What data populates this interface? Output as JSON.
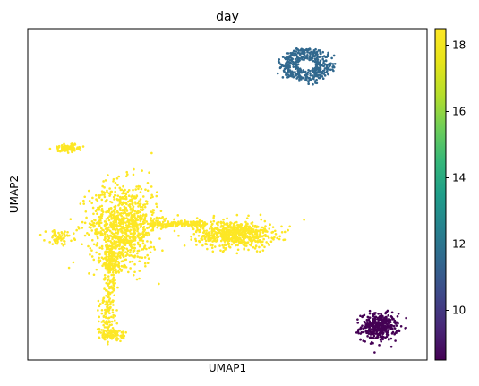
{
  "chart_data": {
    "type": "scatter",
    "title": "day",
    "xlabel": "UMAP1",
    "ylabel": "UMAP2",
    "colorbar": {
      "min": 8.5,
      "max": 18.5,
      "ticks": [
        10,
        12,
        14,
        16,
        18
      ],
      "colormap": "viridis"
    },
    "grid": false,
    "xlim": [
      0,
      10
    ],
    "ylim": [
      0,
      10
    ],
    "clusters": [
      {
        "day": 12,
        "color": "#31688e",
        "shape": "ring",
        "x": 7.0,
        "y": 8.9,
        "rx": 0.75,
        "ry": 0.55,
        "n": 420
      },
      {
        "day": 8.5,
        "color": "#440154",
        "shape": "blob",
        "x": 8.8,
        "y": 1.0,
        "rx": 0.45,
        "ry": 0.4,
        "n": 380
      },
      {
        "day": 18.5,
        "color": "#fde725",
        "shape": "blob",
        "x": 2.4,
        "y": 4.1,
        "rx": 0.85,
        "ry": 1.25,
        "n": 900
      },
      {
        "day": 18.5,
        "color": "#fde725",
        "shape": "blob",
        "x": 5.2,
        "y": 3.8,
        "rx": 0.95,
        "ry": 0.4,
        "n": 650
      },
      {
        "day": 18.5,
        "color": "#fde725",
        "shape": "bridge",
        "x": 3.75,
        "y": 4.1,
        "rx": 0.7,
        "ry": 0.12,
        "n": 180
      },
      {
        "day": 18.5,
        "color": "#fde725",
        "shape": "blob",
        "x": 1.0,
        "y": 6.4,
        "rx": 0.35,
        "ry": 0.12,
        "n": 90
      },
      {
        "day": 18.5,
        "color": "#fde725",
        "shape": "blob",
        "x": 0.8,
        "y": 3.7,
        "rx": 0.35,
        "ry": 0.2,
        "n": 60
      },
      {
        "day": 18.5,
        "color": "#fde725",
        "shape": "blob",
        "x": 2.1,
        "y": 3.0,
        "rx": 0.3,
        "ry": 0.55,
        "n": 150
      },
      {
        "day": 18.5,
        "color": "#fde725",
        "shape": "stalk",
        "x": 2.0,
        "y": 1.55,
        "rx": 0.2,
        "ry": 0.9,
        "n": 170
      },
      {
        "day": 18.5,
        "color": "#fde725",
        "shape": "blob",
        "x": 2.15,
        "y": 0.75,
        "rx": 0.25,
        "ry": 0.18,
        "n": 70
      }
    ]
  }
}
